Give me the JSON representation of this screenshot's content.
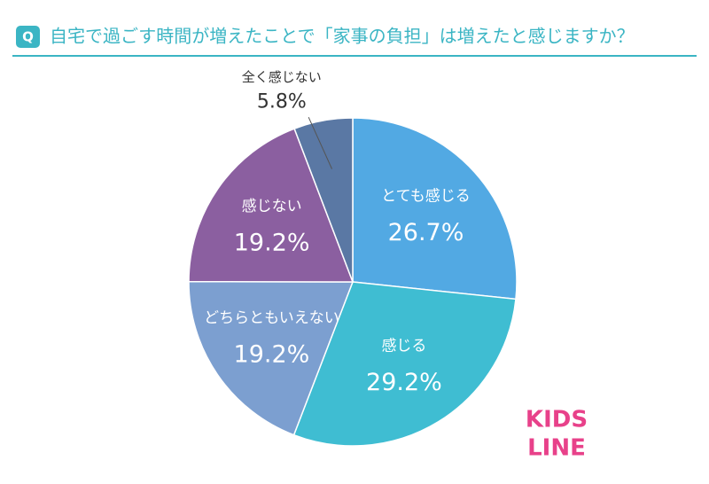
{
  "badge": "Q",
  "chart_data": {
    "type": "pie",
    "title": "自宅で過ごす時間が増えたことで「家事の負担」は増えたと感じますか？",
    "categories": [
      "とても感じる",
      "感じる",
      "どちらともいえない",
      "感じない",
      "全く感じない"
    ],
    "values": [
      26.7,
      29.2,
      19.2,
      19.2,
      5.8
    ],
    "value_labels": [
      "26.7%",
      "29.2%",
      "19.2%",
      "19.2%",
      "5.8%"
    ],
    "colors": [
      "#52a9e3",
      "#3fbdd2",
      "#7c9fd0",
      "#8b5fa0",
      "#5a78a4"
    ]
  },
  "logo": [
    "KIDS",
    "LINE"
  ]
}
